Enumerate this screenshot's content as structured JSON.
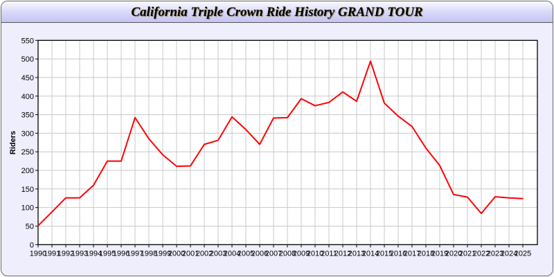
{
  "chart_data": {
    "type": "line",
    "title": "California Triple Crown Ride History GRAND TOUR",
    "xlabel": "",
    "ylabel": "Riders",
    "ylim": [
      0,
      550
    ],
    "yticks": [
      0,
      50,
      100,
      150,
      200,
      250,
      300,
      350,
      400,
      450,
      500,
      550
    ],
    "grid": true,
    "x": [
      1990,
      1991,
      1992,
      1993,
      1994,
      1995,
      1996,
      1997,
      1998,
      1999,
      2000,
      2001,
      2002,
      2003,
      2004,
      2005,
      2006,
      2007,
      2008,
      2009,
      2010,
      2011,
      2012,
      2013,
      2014,
      2015,
      2016,
      2017,
      2018,
      2019,
      2020,
      2021,
      2022,
      2023,
      2024,
      2025
    ],
    "series": [
      {
        "values": [
          51,
          88,
          126,
          126,
          160,
          225,
          225,
          342,
          285,
          242,
          211,
          212,
          270,
          281,
          344,
          310,
          270,
          341,
          342,
          393,
          374,
          383,
          411,
          386,
          494,
          381,
          346,
          318,
          260,
          213,
          135,
          128,
          84,
          129,
          126,
          124
        ],
        "color": "#ff0000"
      }
    ]
  }
}
